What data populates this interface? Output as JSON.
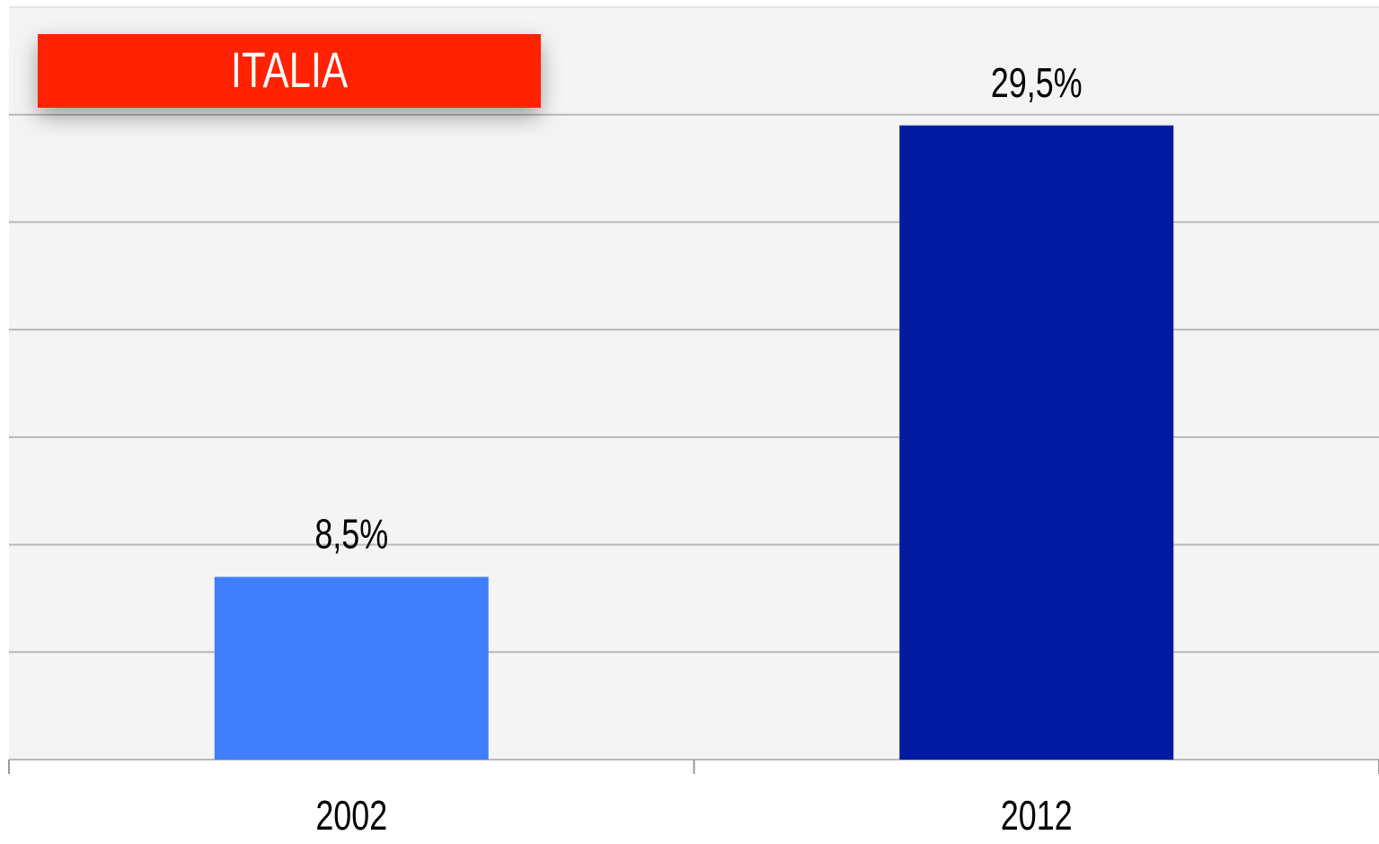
{
  "chart_data": {
    "type": "bar",
    "title": "ITALIA",
    "categories": [
      "2002",
      "2012"
    ],
    "values": [
      8.5,
      29.5
    ],
    "value_labels": [
      "8,5%",
      "29,5%"
    ],
    "colors": [
      "#4080ff",
      "#001ba0"
    ],
    "ylim": [
      0,
      35
    ],
    "yticks": [
      0,
      5,
      10,
      15,
      20,
      25,
      30,
      35
    ],
    "grid": true
  }
}
